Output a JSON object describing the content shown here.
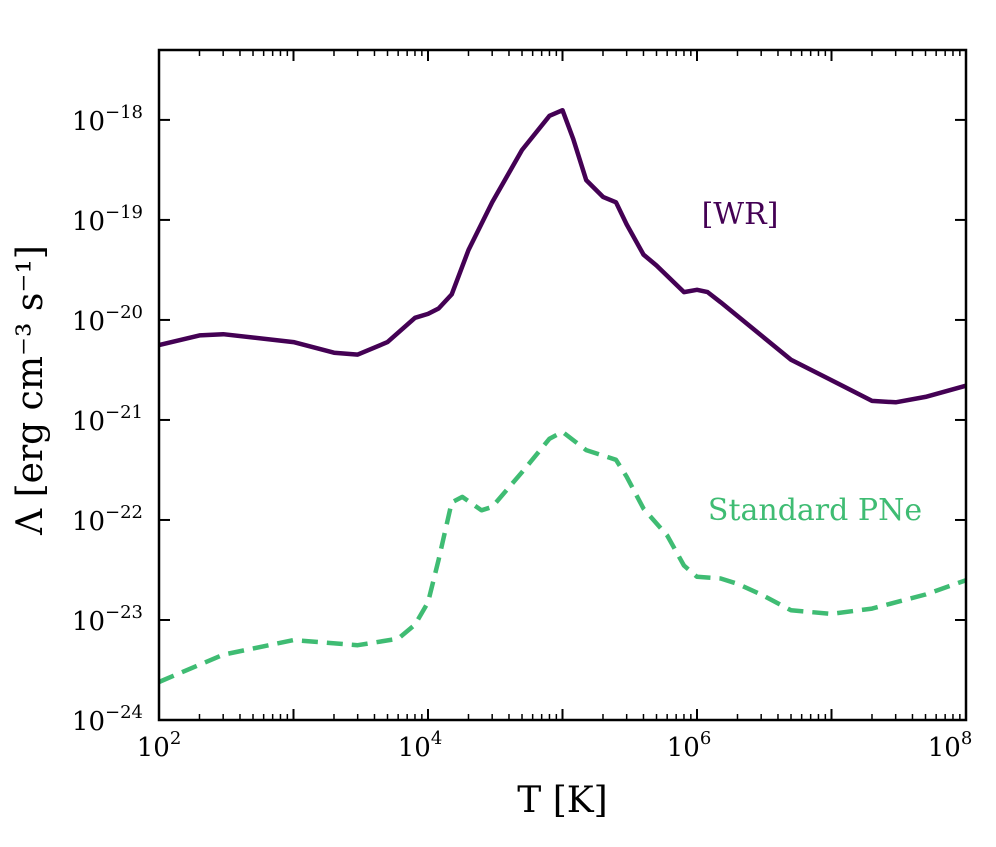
{
  "chart_data": {
    "type": "line",
    "xscale": "log",
    "yscale": "log",
    "xlim": [
      100,
      100000000
    ],
    "ylim": [
      1e-24,
      5e-18
    ],
    "xlabel": "T [K]",
    "ylabel": "Λ [erg cm⁻³ s⁻¹]",
    "x_ticks": [
      {
        "base": "10",
        "exp": "2",
        "value": 100
      },
      {
        "base": "10",
        "exp": "4",
        "value": 10000
      },
      {
        "base": "10",
        "exp": "6",
        "value": 1000000
      },
      {
        "base": "10",
        "exp": "8",
        "value": 100000000
      }
    ],
    "y_ticks": [
      {
        "base": "10",
        "exp": "−24",
        "value": 1e-24
      },
      {
        "base": "10",
        "exp": "−23",
        "value": 1e-23
      },
      {
        "base": "10",
        "exp": "−22",
        "value": 1e-22
      },
      {
        "base": "10",
        "exp": "−21",
        "value": 1e-21
      },
      {
        "base": "10",
        "exp": "−20",
        "value": 1e-20
      },
      {
        "base": "10",
        "exp": "−19",
        "value": 1e-19
      },
      {
        "base": "10",
        "exp": "−18",
        "value": 1e-18
      }
    ],
    "series": [
      {
        "name": "[WR]",
        "color": "#440154",
        "style": "solid",
        "points": [
          [
            100,
            5.6e-21
          ],
          [
            200,
            7e-21
          ],
          [
            300,
            7.2e-21
          ],
          [
            1000,
            6e-21
          ],
          [
            2000,
            4.7e-21
          ],
          [
            3000,
            4.5e-21
          ],
          [
            5000,
            6e-21
          ],
          [
            8000,
            1.05e-20
          ],
          [
            10000,
            1.15e-20
          ],
          [
            12000,
            1.3e-20
          ],
          [
            15000,
            1.8e-20
          ],
          [
            20000,
            5e-20
          ],
          [
            30000,
            1.5e-19
          ],
          [
            50000,
            5e-19
          ],
          [
            80000,
            1.1e-18
          ],
          [
            100000,
            1.25e-18
          ],
          [
            120000,
            6.5e-19
          ],
          [
            150000,
            2.5e-19
          ],
          [
            200000,
            1.7e-19
          ],
          [
            250000,
            1.5e-19
          ],
          [
            300000,
            9e-20
          ],
          [
            400000,
            4.5e-20
          ],
          [
            500000,
            3.5e-20
          ],
          [
            800000,
            1.9e-20
          ],
          [
            1000000,
            2e-20
          ],
          [
            1200000,
            1.9e-20
          ],
          [
            1500000,
            1.5e-20
          ],
          [
            3000000,
            7e-21
          ],
          [
            5000000,
            4e-21
          ],
          [
            10000000,
            2.5e-21
          ],
          [
            20000000,
            1.55e-21
          ],
          [
            30000000,
            1.5e-21
          ],
          [
            50000000,
            1.7e-21
          ],
          [
            100000000,
            2.2e-21
          ]
        ]
      },
      {
        "name": "Standard PNe",
        "color": "#3fbc73",
        "style": "dashed",
        "points": [
          [
            100,
            2.4e-24
          ],
          [
            300,
            4.5e-24
          ],
          [
            1000,
            6.3e-24
          ],
          [
            3000,
            5.6e-24
          ],
          [
            6000,
            6.5e-24
          ],
          [
            8000,
            9e-24
          ],
          [
            10000,
            1.5e-23
          ],
          [
            12000,
            4e-23
          ],
          [
            15000,
            1.5e-22
          ],
          [
            18000,
            1.7e-22
          ],
          [
            25000,
            1.25e-22
          ],
          [
            30000,
            1.35e-22
          ],
          [
            50000,
            3e-22
          ],
          [
            80000,
            6.5e-22
          ],
          [
            100000,
            7.6e-22
          ],
          [
            150000,
            5e-22
          ],
          [
            250000,
            4e-22
          ],
          [
            300000,
            2.7e-22
          ],
          [
            400000,
            1.3e-22
          ],
          [
            600000,
            7e-23
          ],
          [
            800000,
            3.5e-23
          ],
          [
            1000000,
            2.7e-23
          ],
          [
            1500000,
            2.6e-23
          ],
          [
            2000000,
            2.3e-23
          ],
          [
            3000000,
            1.8e-23
          ],
          [
            5000000,
            1.25e-23
          ],
          [
            10000000,
            1.15e-23
          ],
          [
            20000000,
            1.3e-23
          ],
          [
            50000000,
            1.8e-23
          ],
          [
            100000000,
            2.5e-23
          ]
        ]
      }
    ]
  }
}
